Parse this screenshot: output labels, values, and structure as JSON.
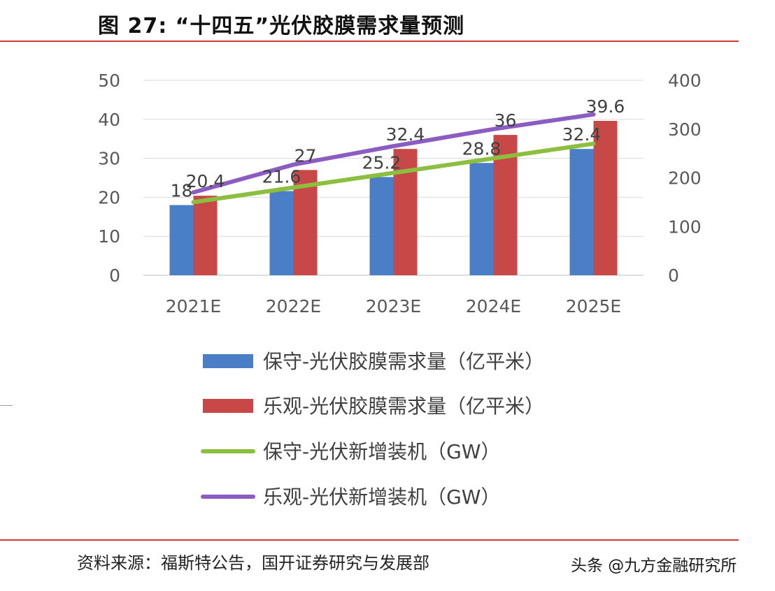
{
  "figure_title": "图 27: “十四五”光伏胶膜需求量预测",
  "source": "资料来源：福斯特公告，国开证券研究与发展部",
  "watermark": "头条 @九方金融研究所",
  "colors": {
    "conservative_bar": "#4a7ec6",
    "optimistic_bar": "#c84848",
    "conservative_line": "#8cbf3f",
    "optimistic_line": "#8b5cc1",
    "axis_text": "#595959",
    "grid": "#d9d9d9",
    "rule": "#d43a2e"
  },
  "chart_data": {
    "type": "bar",
    "title": "",
    "categories": [
      "2021E",
      "2022E",
      "2023E",
      "2024E",
      "2025E"
    ],
    "ylim": [
      0,
      50
    ],
    "yticks": [
      "0",
      "10",
      "20",
      "30",
      "40",
      "50"
    ],
    "y2lim": [
      0,
      400
    ],
    "y2ticks": [
      "0",
      "100",
      "200",
      "300",
      "400"
    ],
    "grid": true,
    "legend_position": "bottom",
    "series": [
      {
        "name": "保守-光伏胶膜需求量（亿平米）",
        "kind": "bar",
        "axis": "left",
        "values": [
          18,
          21.6,
          25.2,
          28.8,
          32.4
        ],
        "labels": [
          "18",
          "21.6",
          "25.2",
          "28.8",
          "32.4"
        ]
      },
      {
        "name": "乐观-光伏胶膜需求量（亿平米）",
        "kind": "bar",
        "axis": "left",
        "values": [
          20.4,
          27,
          32.4,
          36,
          39.6
        ],
        "labels": [
          "20.4",
          "27",
          "32.4",
          "36",
          "39.6"
        ]
      },
      {
        "name": "保守-光伏新增装机（GW）",
        "kind": "line",
        "axis": "right",
        "values": [
          150,
          180,
          210,
          240,
          270
        ]
      },
      {
        "name": "乐观-光伏新增装机（GW）",
        "kind": "line",
        "axis": "right",
        "values": [
          170,
          227,
          265,
          300,
          330
        ]
      }
    ]
  }
}
